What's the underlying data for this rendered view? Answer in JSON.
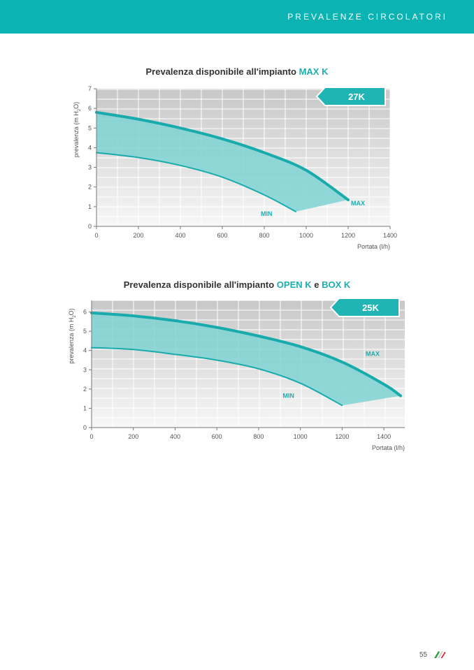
{
  "header": {
    "title": "PREVALENZE CIRCOLATORI"
  },
  "page": {
    "number": "55"
  },
  "colors": {
    "accent": "#0bb3b3",
    "fill": "#7fd3d3",
    "curve": "#19abab",
    "badge": "#20b4b4"
  },
  "chart_data": [
    {
      "type": "area",
      "title_main": "Prevalenza disponibile all'impianto ",
      "title_highlight_1": "MAX K",
      "title_join": "",
      "title_highlight_2": "",
      "xlabel": "Portata (l/h)",
      "ylabel_pre": "prevalenza (m H",
      "ylabel_sub": "2",
      "ylabel_post": "O)",
      "xlim": [
        0,
        1400
      ],
      "ylim": [
        0,
        7
      ],
      "x_ticks": [
        0,
        200,
        400,
        600,
        800,
        1000,
        1200,
        1400
      ],
      "y_ticks": [
        0,
        1,
        2,
        3,
        4,
        5,
        6,
        7
      ],
      "grid": true,
      "badge": "27K",
      "series": [
        {
          "name": "MAX",
          "x": [
            0,
            200,
            400,
            600,
            800,
            1000,
            1200
          ],
          "y": [
            5.8,
            5.45,
            5.0,
            4.45,
            3.75,
            2.85,
            1.35
          ]
        },
        {
          "name": "MIN",
          "x": [
            0,
            200,
            400,
            600,
            800,
            950
          ],
          "y": [
            3.75,
            3.5,
            3.1,
            2.5,
            1.6,
            0.75
          ]
        }
      ]
    },
    {
      "type": "area",
      "title_main": "Prevalenza disponibile all'impianto ",
      "title_highlight_1": "OPEN K",
      "title_join": " e ",
      "title_highlight_2": "BOX K",
      "xlabel": "Portata (l/h)",
      "ylabel_pre": "prevalenza (m H",
      "ylabel_sub": "2",
      "ylabel_post": "O)",
      "xlim": [
        0,
        1500
      ],
      "ylim": [
        0,
        6.6
      ],
      "x_ticks": [
        0,
        200,
        400,
        600,
        800,
        1000,
        1200,
        1400
      ],
      "y_ticks": [
        0,
        1,
        2,
        3,
        4,
        5,
        6
      ],
      "grid": true,
      "badge": "25K",
      "series": [
        {
          "name": "MAX",
          "x": [
            0,
            200,
            400,
            600,
            800,
            1000,
            1200,
            1400,
            1480
          ],
          "y": [
            5.95,
            5.8,
            5.55,
            5.2,
            4.75,
            4.2,
            3.4,
            2.25,
            1.65
          ]
        },
        {
          "name": "MIN",
          "x": [
            0,
            200,
            400,
            600,
            800,
            1000,
            1200
          ],
          "y": [
            4.15,
            4.05,
            3.8,
            3.5,
            3.05,
            2.3,
            1.15
          ]
        }
      ]
    }
  ]
}
